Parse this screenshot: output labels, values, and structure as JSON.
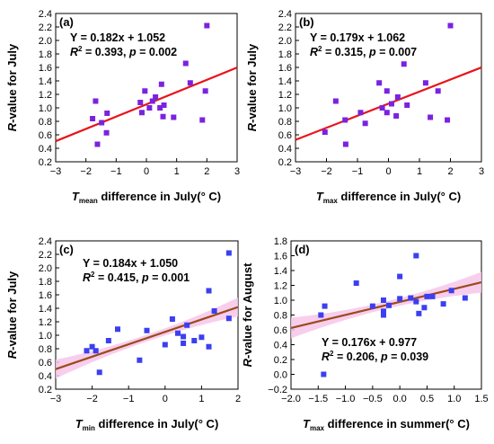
{
  "chart_data": [
    {
      "type": "scatter",
      "panel_label": "(a)",
      "ylabel_prefix": "R",
      "ylabel_rest": "-value for July",
      "xlabel_var": "T",
      "xlabel_sub": "mean",
      "xlabel_rest": " difference in July(° C)",
      "equation": "Y = 0.182x + 1.052",
      "r2_label": "R",
      "r2_text": " = 0.393, ",
      "p_label": "p",
      "p_text": " = 0.002",
      "xlim": [
        -3,
        3
      ],
      "ylim": [
        0.2,
        2.4
      ],
      "xticks": [
        "−3",
        "−2",
        "−1",
        "0",
        "1",
        "2",
        "3"
      ],
      "yticks": [
        "0.2",
        "0.4",
        "0.6",
        "0.8",
        "1.0",
        "1.2",
        "1.4",
        "1.6",
        "1.8",
        "2.0",
        "2.2",
        "2.4"
      ],
      "fit": {
        "slope": 0.182,
        "intercept": 1.052,
        "color": "#e8141b",
        "band": false
      },
      "marker_color": "#7b22e0",
      "points": [
        [
          -1.78,
          0.84
        ],
        [
          -1.68,
          1.1
        ],
        [
          -1.62,
          0.46
        ],
        [
          -1.48,
          0.78
        ],
        [
          -1.3,
          0.92
        ],
        [
          -1.32,
          0.63
        ],
        [
          -0.2,
          1.08
        ],
        [
          -0.05,
          1.25
        ],
        [
          -0.15,
          0.93
        ],
        [
          0.1,
          1.0
        ],
        [
          0.2,
          1.1
        ],
        [
          0.3,
          1.16
        ],
        [
          0.45,
          1.0
        ],
        [
          0.5,
          1.35
        ],
        [
          0.55,
          0.87
        ],
        [
          0.58,
          1.04
        ],
        [
          0.9,
          0.86
        ],
        [
          1.3,
          1.66
        ],
        [
          1.45,
          1.37
        ],
        [
          1.85,
          0.82
        ],
        [
          1.95,
          1.25
        ],
        [
          2.0,
          2.22
        ]
      ]
    },
    {
      "type": "scatter",
      "panel_label": "(b)",
      "ylabel_prefix": "R",
      "ylabel_rest": "-value for July",
      "xlabel_var": "T",
      "xlabel_sub": "max",
      "xlabel_rest": " difference in July(° C)",
      "equation": "Y = 0.179x + 1.062",
      "r2_label": "R",
      "r2_text": " = 0.315, ",
      "p_label": "p",
      "p_text": " = 0.007",
      "xlim": [
        -3,
        3
      ],
      "ylim": [
        0.2,
        2.4
      ],
      "xticks": [
        "−3",
        "−2",
        "−1",
        "0",
        "1",
        "2",
        "3"
      ],
      "yticks": [
        "0.2",
        "0.4",
        "0.6",
        "0.8",
        "1.0",
        "1.2",
        "1.4",
        "1.6",
        "1.8",
        "2.0",
        "2.2",
        "2.4"
      ],
      "fit": {
        "slope": 0.179,
        "intercept": 1.062,
        "color": "#e8141b",
        "band": false
      },
      "marker_color": "#7b22e0",
      "points": [
        [
          -2.05,
          0.64
        ],
        [
          -1.7,
          1.1
        ],
        [
          -1.4,
          0.82
        ],
        [
          -1.38,
          0.46
        ],
        [
          -0.9,
          0.93
        ],
        [
          -0.75,
          0.77
        ],
        [
          -0.3,
          1.37
        ],
        [
          -0.2,
          1.0
        ],
        [
          -0.05,
          1.25
        ],
        [
          -0.05,
          0.93
        ],
        [
          0.1,
          1.06
        ],
        [
          0.3,
          1.16
        ],
        [
          0.25,
          0.88
        ],
        [
          0.5,
          1.65
        ],
        [
          0.6,
          1.04
        ],
        [
          1.2,
          1.37
        ],
        [
          1.35,
          0.86
        ],
        [
          1.6,
          1.25
        ],
        [
          1.9,
          0.82
        ],
        [
          2.0,
          2.22
        ]
      ]
    },
    {
      "type": "scatter",
      "panel_label": "(c)",
      "ylabel_prefix": "R",
      "ylabel_rest": "-value for July",
      "xlabel_var": "T",
      "xlabel_sub": "min",
      "xlabel_rest": " difference in July(° C)",
      "equation": "Y = 0.184x + 1.050",
      "r2_label": "R",
      "r2_text": " = 0.415, ",
      "p_label": "p",
      "p_text": " = 0.001",
      "xlim": [
        -3,
        2
      ],
      "ylim": [
        0.2,
        2.4
      ],
      "xticks": [
        "−3",
        "−2",
        "−1",
        "0",
        "1",
        "2"
      ],
      "yticks": [
        "0.2",
        "0.4",
        "0.6",
        "0.8",
        "1.0",
        "1.2",
        "1.4",
        "1.6",
        "1.8",
        "2.0",
        "2.2",
        "2.4"
      ],
      "fit": {
        "slope": 0.184,
        "intercept": 1.05,
        "color": "#9b4a1a",
        "band": true
      },
      "marker_color": "#3b3ff0",
      "points": [
        [
          -2.15,
          0.77
        ],
        [
          -2.0,
          0.83
        ],
        [
          -1.9,
          0.77
        ],
        [
          -1.8,
          0.45
        ],
        [
          -1.55,
          0.92
        ],
        [
          -1.3,
          1.09
        ],
        [
          -0.7,
          0.63
        ],
        [
          -0.5,
          1.07
        ],
        [
          0.0,
          0.86
        ],
        [
          0.2,
          1.24
        ],
        [
          0.35,
          1.03
        ],
        [
          0.5,
          0.98
        ],
        [
          0.5,
          0.88
        ],
        [
          0.6,
          1.15
        ],
        [
          0.8,
          0.92
        ],
        [
          1.0,
          0.97
        ],
        [
          1.2,
          0.83
        ],
        [
          1.2,
          1.66
        ],
        [
          1.35,
          1.36
        ],
        [
          1.75,
          1.25
        ],
        [
          1.75,
          2.22
        ]
      ]
    },
    {
      "type": "scatter",
      "panel_label": "(d)",
      "ylabel_prefix": "R",
      "ylabel_rest": "-value for August",
      "xlabel_var": "T",
      "xlabel_sub": "max",
      "xlabel_rest": " difference in summer(° C)",
      "equation": "Y = 0.176x + 0.977",
      "r2_label": "R",
      "r2_text": " = 0.206, ",
      "p_label": "p",
      "p_text": " = 0.039",
      "xlim": [
        -2.0,
        1.5
      ],
      "ylim": [
        -0.2,
        1.8
      ],
      "xticks": [
        "−2.0",
        "−1.5",
        "−1.0",
        "−0.5",
        "0.0",
        "0.5",
        "1.0",
        "1.5"
      ],
      "yticks": [
        "−0.2",
        "0.0",
        "0.2",
        "0.4",
        "0.6",
        "0.8",
        "1.0",
        "1.2",
        "1.4",
        "1.6",
        "1.8"
      ],
      "fit": {
        "slope": 0.176,
        "intercept": 0.977,
        "color": "#9b4a1a",
        "band": true
      },
      "marker_color": "#3b3ff0",
      "points": [
        [
          -1.45,
          0.8
        ],
        [
          -1.38,
          0.92
        ],
        [
          -1.4,
          0.0
        ],
        [
          -0.8,
          1.23
        ],
        [
          -0.5,
          0.92
        ],
        [
          -0.3,
          1.0
        ],
        [
          -0.3,
          0.85
        ],
        [
          -0.3,
          0.8
        ],
        [
          -0.2,
          0.93
        ],
        [
          0.0,
          1.32
        ],
        [
          0.0,
          1.02
        ],
        [
          0.2,
          1.03
        ],
        [
          0.3,
          1.6
        ],
        [
          0.3,
          0.98
        ],
        [
          0.35,
          0.82
        ],
        [
          0.45,
          0.9
        ],
        [
          0.5,
          1.05
        ],
        [
          0.6,
          1.05
        ],
        [
          0.8,
          0.95
        ],
        [
          0.95,
          1.13
        ],
        [
          1.2,
          1.03
        ]
      ]
    }
  ]
}
